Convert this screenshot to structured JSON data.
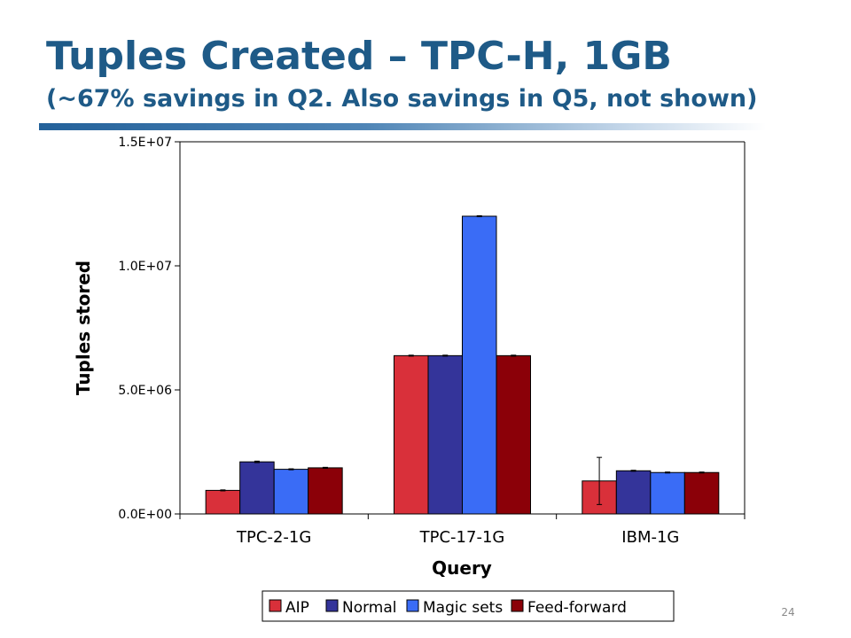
{
  "slide": {
    "title": "Tuples Created – TPC-H, 1GB",
    "subtitle": "(~67% savings in Q2.  Also savings in Q5, not shown)",
    "page_number": "24"
  },
  "chart_data": {
    "type": "bar",
    "title": "",
    "xlabel": "Query",
    "ylabel": "Tuples stored",
    "categories": [
      "TPC-2-1G",
      "TPC-17-1G",
      "IBM-1G"
    ],
    "ylim": [
      0,
      15000000
    ],
    "yticks": [
      0,
      5000000,
      10000000,
      15000000
    ],
    "ytick_labels": [
      "0.0E+00",
      "5.0E+06",
      "1.0E+07",
      "1.5E+07"
    ],
    "grid": false,
    "legend_position": "bottom",
    "error_bars": true,
    "series": [
      {
        "name": "AIP",
        "color": "#d9303a",
        "values": [
          950000,
          6380000,
          1330000
        ],
        "errors": [
          20000,
          20000,
          950000
        ]
      },
      {
        "name": "Normal",
        "color": "#34349a",
        "values": [
          2100000,
          6380000,
          1740000
        ],
        "errors": [
          30000,
          20000,
          20000
        ]
      },
      {
        "name": "Magic sets",
        "color": "#3a6cf6",
        "values": [
          1800000,
          12000000,
          1670000
        ],
        "errors": [
          20000,
          20000,
          20000
        ]
      },
      {
        "name": "Feed-forward",
        "color": "#8b0008",
        "values": [
          1860000,
          6380000,
          1670000
        ],
        "errors": [
          20000,
          20000,
          20000
        ]
      }
    ]
  }
}
